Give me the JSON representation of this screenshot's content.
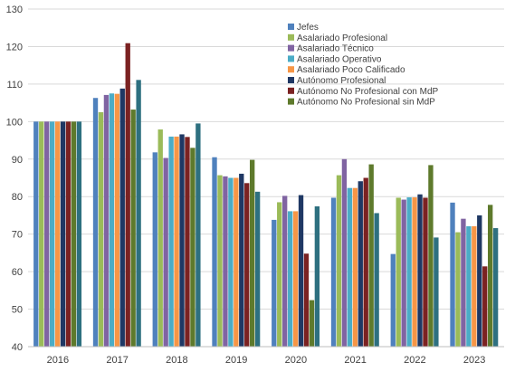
{
  "chart_data": {
    "type": "bar",
    "categories": [
      "2016",
      "2017",
      "2018",
      "2019",
      "2020",
      "2021",
      "2022",
      "2023"
    ],
    "ylim": [
      40,
      130
    ],
    "yticks": [
      40,
      50,
      60,
      70,
      80,
      90,
      100,
      110,
      120,
      130
    ],
    "grid": true,
    "legend_position": "top-right",
    "title": "",
    "xlabel": "",
    "ylabel": "",
    "series": [
      {
        "name": "Jefes",
        "color": "#4F81BD",
        "values": [
          100,
          106.3,
          91.8,
          90.5,
          73.8,
          79.7,
          64.7,
          78.4
        ]
      },
      {
        "name": "Asalariado Profesional",
        "color": "#9BBB59",
        "values": [
          100,
          102.5,
          97.9,
          85.7,
          78.5,
          85.7,
          79.7,
          70.5
        ]
      },
      {
        "name": "Asalariado Técnico",
        "color": "#8064A2",
        "values": [
          100,
          107.1,
          90.3,
          85.4,
          80.2,
          90.0,
          79.2,
          74.1
        ]
      },
      {
        "name": "Asalariado Operativo",
        "color": "#4BACC6",
        "values": [
          100,
          107.5,
          96.0,
          85.0,
          76.1,
          82.3,
          79.8,
          72.1
        ]
      },
      {
        "name": "Asalariado Poco Calificado",
        "color": "#F79646",
        "values": [
          100,
          107.4,
          96.0,
          85.0,
          76.1,
          82.3,
          79.8,
          72.1
        ]
      },
      {
        "name": "Autónomo Profesional",
        "color": "#1F3864",
        "values": [
          100,
          108.8,
          96.6,
          86.1,
          80.4,
          84.1,
          80.6,
          75.0
        ]
      },
      {
        "name": "Autónomo No Profesional con MdP",
        "color": "#7B2222",
        "values": [
          100,
          120.9,
          95.9,
          83.6,
          64.8,
          85.0,
          79.7,
          61.4
        ]
      },
      {
        "name": "Autónomo No Profesional sin MdP",
        "color": "#5E7A2C",
        "values": [
          100,
          103.2,
          93.0,
          89.8,
          52.4,
          88.6,
          88.4,
          77.8
        ]
      },
      {
        "color": "#2E7080",
        "values": [
          100,
          111.1,
          99.5,
          81.3,
          77.4,
          75.6,
          69.1,
          71.6
        ]
      }
    ]
  }
}
